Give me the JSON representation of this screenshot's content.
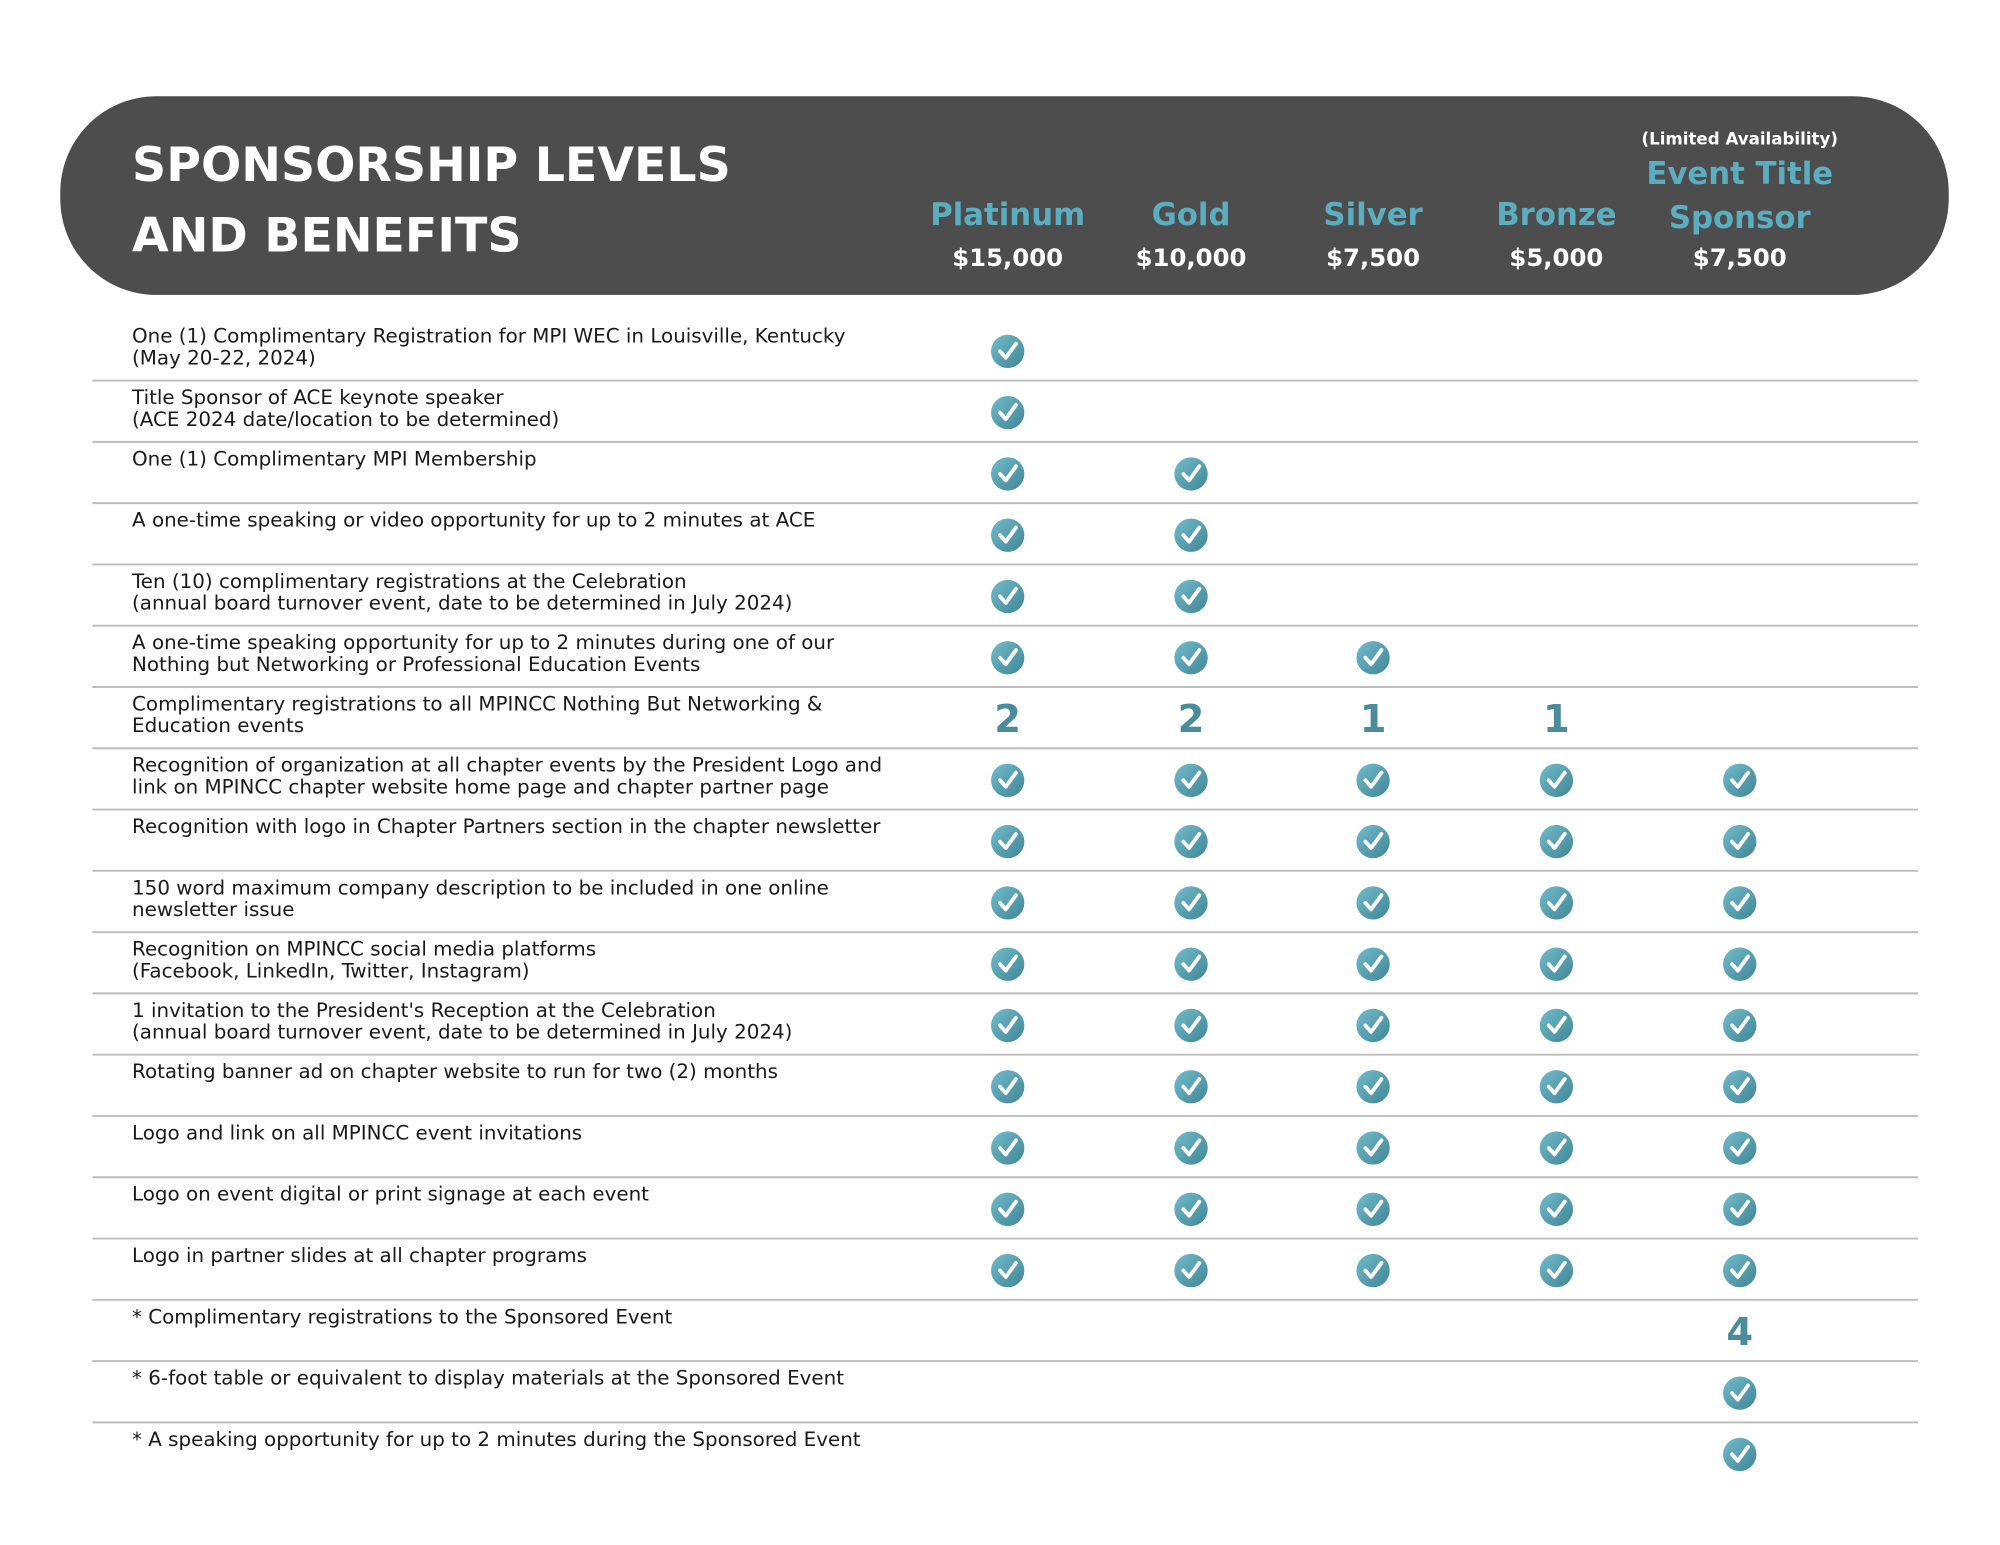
{
  "header": {
    "title": [
      "SPONSORSHIP LEVELS",
      "AND BENEFITS"
    ],
    "note": "(Limited Availability)"
  },
  "columns": [
    {
      "name": [
        "Platinum"
      ],
      "price": "$15,000"
    },
    {
      "name": [
        "Gold"
      ],
      "price": "$10,000"
    },
    {
      "name": [
        "Silver"
      ],
      "price": "$7,500"
    },
    {
      "name": [
        "Bronze"
      ],
      "price": "$5,000"
    },
    {
      "name": [
        "Event Title",
        "Sponsor"
      ],
      "price": "$7,500"
    }
  ],
  "rows": [
    {
      "label": [
        "One (1) Complimentary Registration for MPI WEC in Louisville, Kentucky",
        "(May 20-22, 2024)"
      ],
      "cells": [
        true,
        null,
        null,
        null,
        null
      ]
    },
    {
      "label": [
        "Title Sponsor of ACE keynote speaker",
        "(ACE 2024 date/location to be determined)"
      ],
      "cells": [
        true,
        null,
        null,
        null,
        null
      ]
    },
    {
      "label": [
        "One (1) Complimentary MPI Membership"
      ],
      "cells": [
        true,
        true,
        null,
        null,
        null
      ]
    },
    {
      "label": [
        "A one-time speaking or video opportunity for up to 2 minutes at ACE"
      ],
      "cells": [
        true,
        true,
        null,
        null,
        null
      ]
    },
    {
      "label": [
        "Ten (10) complimentary registrations at the Celebration",
        "(annual board turnover event, date to be determined in July 2024)"
      ],
      "cells": [
        true,
        true,
        null,
        null,
        null
      ]
    },
    {
      "label": [
        "A one-time speaking opportunity for up to 2 minutes during one of our",
        "Nothing but Networking or Professional Education Events"
      ],
      "cells": [
        true,
        true,
        true,
        null,
        null
      ]
    },
    {
      "label": [
        "Complimentary registrations to all MPINCC Nothing But Networking &",
        "Education events"
      ],
      "cells": [
        2,
        2,
        1,
        1,
        null
      ]
    },
    {
      "label": [
        "Recognition of organization at all chapter events by the President Logo and",
        "link on MPINCC chapter website home page and chapter partner page"
      ],
      "cells": [
        true,
        true,
        true,
        true,
        true
      ]
    },
    {
      "label": [
        "Recognition with logo in Chapter Partners section in the chapter newsletter"
      ],
      "cells": [
        true,
        true,
        true,
        true,
        true
      ]
    },
    {
      "label": [
        "150 word maximum company description to be included in one online",
        "newsletter issue"
      ],
      "cells": [
        true,
        true,
        true,
        true,
        true
      ]
    },
    {
      "label": [
        "Recognition on MPINCC social media platforms",
        "(Facebook, LinkedIn, Twitter, Instagram)"
      ],
      "cells": [
        true,
        true,
        true,
        true,
        true
      ]
    },
    {
      "label": [
        "1 invitation to the President's Reception at  the Celebration",
        "(annual board turnover event, date to be determined in July 2024)"
      ],
      "cells": [
        true,
        true,
        true,
        true,
        true
      ]
    },
    {
      "label": [
        "Rotating banner ad on chapter website to run for two (2) months"
      ],
      "cells": [
        true,
        true,
        true,
        true,
        true
      ]
    },
    {
      "label": [
        "Logo and link on all MPINCC event invitations"
      ],
      "cells": [
        true,
        true,
        true,
        true,
        true
      ]
    },
    {
      "label": [
        "Logo on event digital or print signage at each event"
      ],
      "cells": [
        true,
        true,
        true,
        true,
        true
      ]
    },
    {
      "label": [
        "Logo in partner slides at all chapter programs"
      ],
      "cells": [
        true,
        true,
        true,
        true,
        true
      ]
    },
    {
      "label": [
        "* Complimentary registrations to the Sponsored Event"
      ],
      "cells": [
        null,
        null,
        null,
        null,
        4
      ]
    },
    {
      "label": [
        "* 6-foot table or equivalent to display materials at the Sponsored Event"
      ],
      "cells": [
        null,
        null,
        null,
        null,
        true
      ]
    },
    {
      "label": [
        "* A speaking opportunity for up to 2 minutes during the Sponsored Event"
      ],
      "cells": [
        null,
        null,
        null,
        null,
        true
      ]
    }
  ]
}
